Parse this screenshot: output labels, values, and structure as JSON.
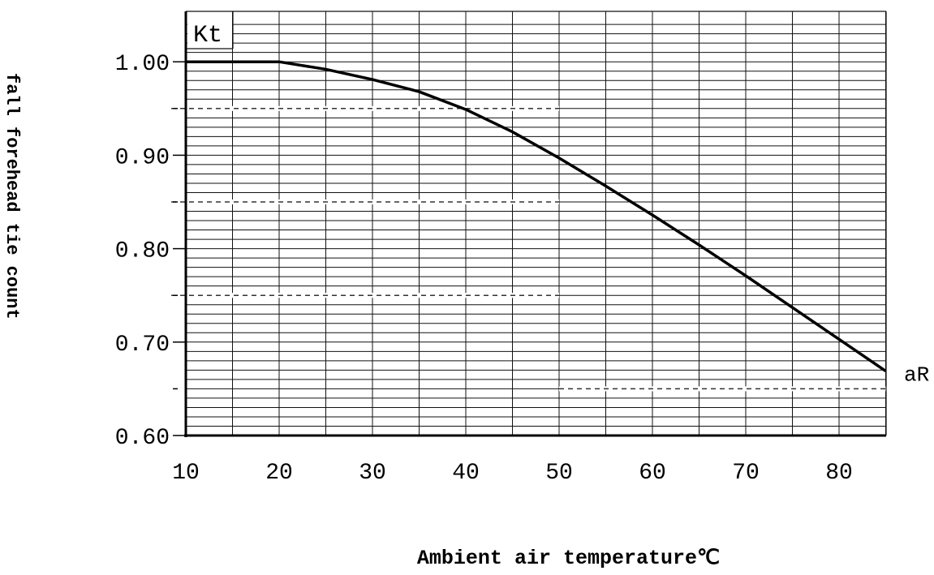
{
  "chart_data": {
    "type": "line",
    "title": "",
    "xlabel": "Ambient air temperature℃",
    "ylabel": "fall forehead tie count",
    "corner_label": "Kt",
    "end_label": "aR",
    "xlim": [
      10,
      85
    ],
    "ylim": [
      0.6,
      1.05
    ],
    "x_ticks": [
      "10",
      "20",
      "30",
      "40",
      "50",
      "60",
      "70",
      "80"
    ],
    "y_ticks": [
      "0.60",
      "0.70",
      "0.80",
      "0.90",
      "1.00"
    ],
    "grid": true,
    "series": [
      {
        "x": [
          10,
          15,
          20,
          25,
          30,
          35,
          40,
          45,
          50,
          55,
          60,
          65,
          70,
          75,
          80,
          85
        ],
        "y": [
          1.0,
          1.0,
          1.0,
          0.992,
          0.981,
          0.968,
          0.949,
          0.925,
          0.897,
          0.867,
          0.836,
          0.804,
          0.771,
          0.737,
          0.703,
          0.669
        ]
      }
    ],
    "reference_lines": [
      {
        "y": 0.95,
        "x_range": [
          10,
          50
        ]
      },
      {
        "y": 0.85,
        "x_range": [
          10,
          50
        ]
      },
      {
        "y": 0.75,
        "x_range": [
          10,
          50
        ]
      },
      {
        "y": 0.65,
        "x_range": [
          50,
          85
        ]
      }
    ]
  }
}
